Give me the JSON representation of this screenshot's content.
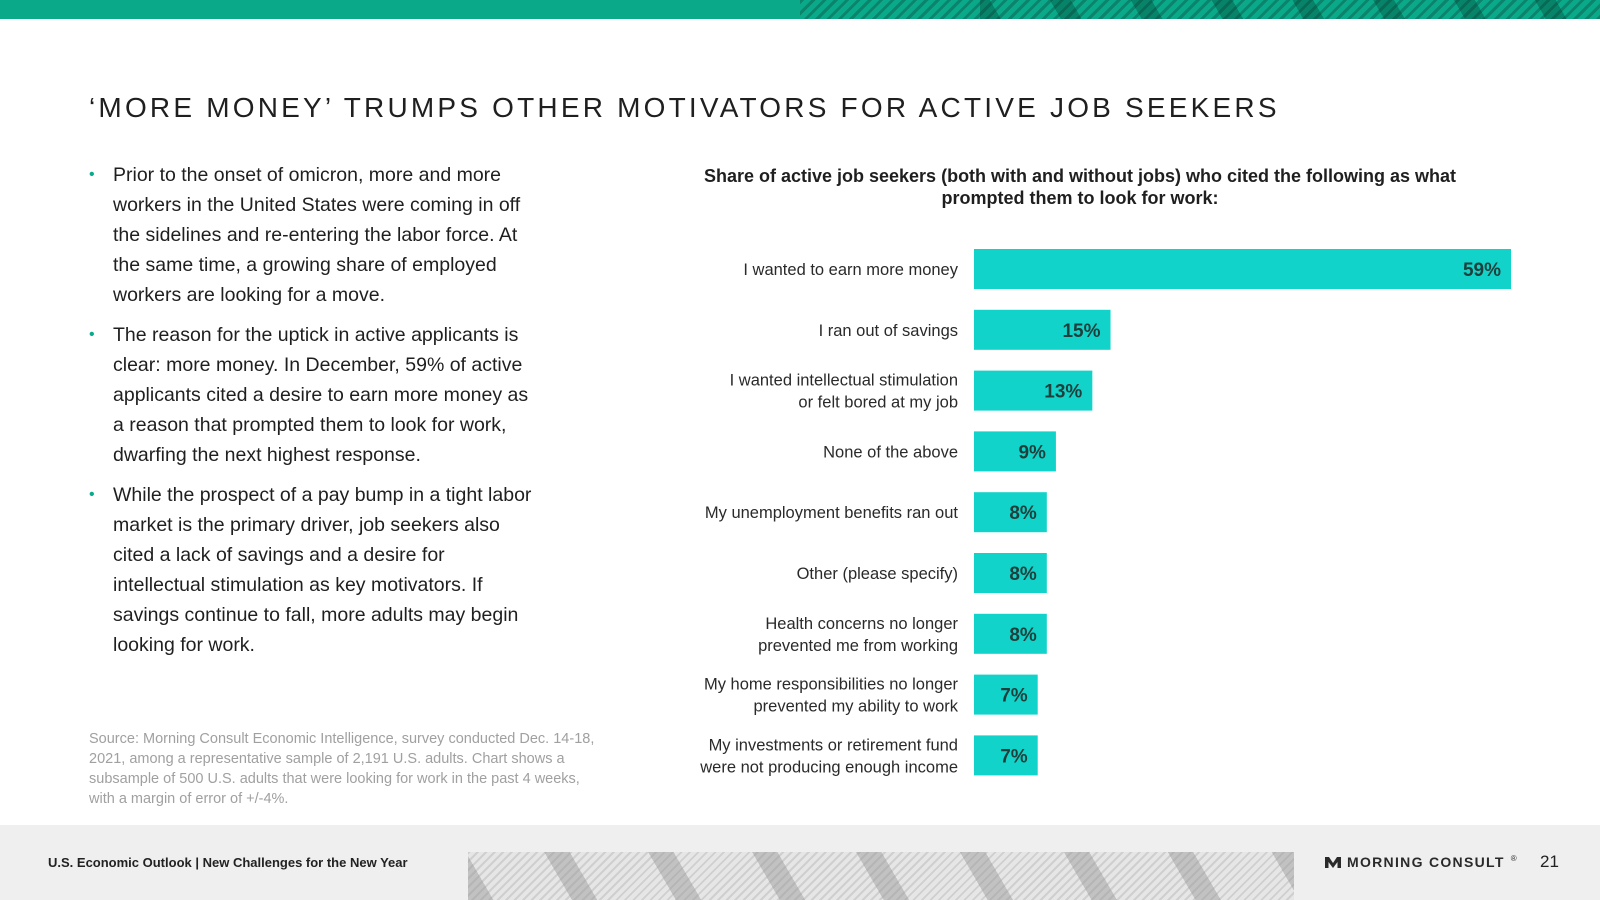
{
  "header": {
    "title": "‘MORE MONEY’ TRUMPS OTHER MOTIVATORS FOR ACTIVE JOB SEEKERS"
  },
  "bullets": [
    "Prior to the onset of omicron, more and more workers in the United States were coming in off the sidelines and re-entering the labor force. At the same time, a growing share of employed workers are looking for a move.",
    "The reason for the uptick in active applicants is clear: more money. In December, 59% of active applicants cited a desire to earn more money as a reason that prompted them to look for work, dwarfing the next highest response.",
    "While the prospect of a pay bump in a tight labor market is the primary driver, job seekers also cited a lack of savings and a desire for intellectual stimulation as key motivators. If savings continue to fall, more adults may begin looking for work."
  ],
  "bullet_marker": "•",
  "source": "Source: Morning Consult Economic Intelligence, survey conducted Dec. 14-18, 2021, among a representative sample of 2,191 U.S. adults. Chart shows a subsample of 500 U.S. adults that were looking for work in the past 4 weeks, with a margin of error of +/-4%.",
  "chart_data": {
    "type": "bar",
    "orientation": "horizontal",
    "title": "Share of active job seekers (both with and without jobs) who cited the following as what prompted them to look for work:",
    "categories": [
      [
        "I wanted to earn more money"
      ],
      [
        "I ran out of savings"
      ],
      [
        "I wanted intellectual stimulation",
        "or felt bored at my job"
      ],
      [
        "None of the above"
      ],
      [
        "My unemployment benefits ran out"
      ],
      [
        "Other (please specify)"
      ],
      [
        "Health concerns no longer",
        "prevented me from working"
      ],
      [
        "My home responsibilities no longer",
        "prevented my ability to work"
      ],
      [
        "My investments or retirement fund",
        "were not producing enough income"
      ]
    ],
    "values": [
      59,
      15,
      13,
      9,
      8,
      8,
      8,
      7,
      7
    ],
    "value_labels": [
      "59%",
      "15%",
      "13%",
      "9%",
      "8%",
      "8%",
      "8%",
      "7%",
      "7%"
    ],
    "xlim": [
      0,
      59
    ],
    "bar_color": "#12d3c9",
    "grid": false,
    "legend": "none"
  },
  "footer": {
    "text": "U.S. Economic Outlook | New Challenges for the New Year",
    "brand": "MORNING CONSULT",
    "brand_mark": "®",
    "page_number": "21"
  },
  "colors": {
    "accent": "#0aa98a",
    "bar": "#12d3c9",
    "footer_bg": "#efefef"
  }
}
